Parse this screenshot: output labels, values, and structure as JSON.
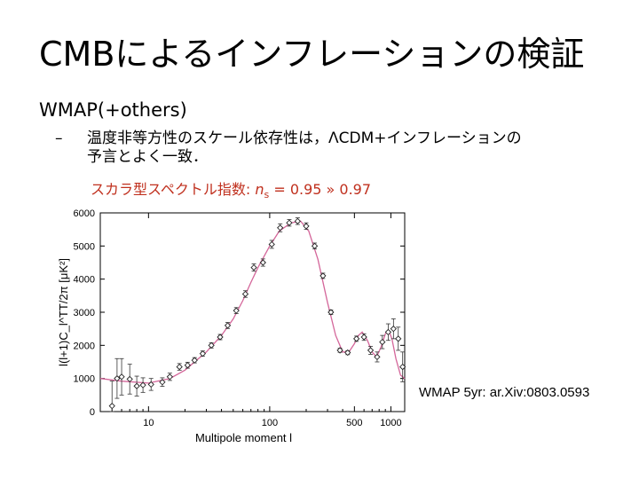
{
  "slide": {
    "title": "CMBによるインフレーションの検証",
    "bullet1": "WMAP(+others)",
    "bullet2_dash": "–",
    "bullet2_line1": "温度非等方性のスケール依存性は，ΛCDM+インフレーションの",
    "bullet2_line2": "予言とよく一致．",
    "red_prefix": "スカラ型スペクトル指数: ",
    "red_ns": "n",
    "red_sub": "s",
    "red_suffix": " = 0.95 » 0.97",
    "red_color": "#c0301e",
    "credit": "WMAP 5yr: ar.Xiv:0803.0593"
  },
  "chart_data": {
    "type": "scatter",
    "xlabel": "Multipole moment  l",
    "ylabel": "l(l+1)C_l^TT/2π [μK²]",
    "x_scale": "log",
    "xlim": [
      4,
      1300
    ],
    "ylim": [
      0,
      6000
    ],
    "x_ticks": [
      10,
      100,
      500,
      1000
    ],
    "y_ticks": [
      0,
      1000,
      2000,
      3000,
      4000,
      5000,
      6000
    ],
    "grid": false,
    "curve_color": "#d4669a",
    "points": [
      {
        "x": 5,
        "y": 170,
        "err": 750
      },
      {
        "x": 5.5,
        "y": 1000,
        "err": 600
      },
      {
        "x": 6,
        "y": 1050,
        "err": 550
      },
      {
        "x": 7,
        "y": 980,
        "err": 450
      },
      {
        "x": 8,
        "y": 770,
        "err": 300
      },
      {
        "x": 9,
        "y": 800,
        "err": 220
      },
      {
        "x": 10.5,
        "y": 820,
        "err": 180
      },
      {
        "x": 13,
        "y": 890,
        "err": 130
      },
      {
        "x": 15,
        "y": 1050,
        "err": 110
      },
      {
        "x": 18,
        "y": 1350,
        "err": 100
      },
      {
        "x": 21,
        "y": 1400,
        "err": 90
      },
      {
        "x": 24,
        "y": 1550,
        "err": 80
      },
      {
        "x": 28,
        "y": 1750,
        "err": 80
      },
      {
        "x": 33,
        "y": 2000,
        "err": 80
      },
      {
        "x": 39,
        "y": 2250,
        "err": 80
      },
      {
        "x": 45,
        "y": 2600,
        "err": 90
      },
      {
        "x": 53,
        "y": 3050,
        "err": 90
      },
      {
        "x": 63,
        "y": 3550,
        "err": 100
      },
      {
        "x": 74,
        "y": 4350,
        "err": 110
      },
      {
        "x": 88,
        "y": 4500,
        "err": 110
      },
      {
        "x": 104,
        "y": 5050,
        "err": 120
      },
      {
        "x": 122,
        "y": 5550,
        "err": 120
      },
      {
        "x": 145,
        "y": 5700,
        "err": 100
      },
      {
        "x": 170,
        "y": 5750,
        "err": 100
      },
      {
        "x": 200,
        "y": 5600,
        "err": 100
      },
      {
        "x": 235,
        "y": 5000,
        "err": 90
      },
      {
        "x": 275,
        "y": 4100,
        "err": 80
      },
      {
        "x": 320,
        "y": 3000,
        "err": 70
      },
      {
        "x": 380,
        "y": 1850,
        "err": 60
      },
      {
        "x": 440,
        "y": 1780,
        "err": 60
      },
      {
        "x": 520,
        "y": 2200,
        "err": 80
      },
      {
        "x": 600,
        "y": 2250,
        "err": 100
      },
      {
        "x": 680,
        "y": 1850,
        "err": 120
      },
      {
        "x": 770,
        "y": 1650,
        "err": 150
      },
      {
        "x": 850,
        "y": 2100,
        "err": 200
      },
      {
        "x": 950,
        "y": 2400,
        "err": 250
      },
      {
        "x": 1050,
        "y": 2500,
        "err": 300
      },
      {
        "x": 1150,
        "y": 2200,
        "err": 350
      },
      {
        "x": 1250,
        "y": 1350,
        "err": 450
      }
    ],
    "curve": [
      {
        "x": 4,
        "y": 1000
      },
      {
        "x": 6,
        "y": 920
      },
      {
        "x": 10,
        "y": 860
      },
      {
        "x": 15,
        "y": 1000
      },
      {
        "x": 20,
        "y": 1250
      },
      {
        "x": 30,
        "y": 1800
      },
      {
        "x": 40,
        "y": 2300
      },
      {
        "x": 50,
        "y": 2800
      },
      {
        "x": 60,
        "y": 3350
      },
      {
        "x": 70,
        "y": 3900
      },
      {
        "x": 80,
        "y": 4350
      },
      {
        "x": 100,
        "y": 5000
      },
      {
        "x": 120,
        "y": 5450
      },
      {
        "x": 150,
        "y": 5700
      },
      {
        "x": 180,
        "y": 5750
      },
      {
        "x": 210,
        "y": 5450
      },
      {
        "x": 250,
        "y": 4600
      },
      {
        "x": 300,
        "y": 3300
      },
      {
        "x": 350,
        "y": 2300
      },
      {
        "x": 400,
        "y": 1800
      },
      {
        "x": 450,
        "y": 1800
      },
      {
        "x": 500,
        "y": 2050
      },
      {
        "x": 540,
        "y": 2300
      },
      {
        "x": 580,
        "y": 2400
      },
      {
        "x": 640,
        "y": 2150
      },
      {
        "x": 700,
        "y": 1800
      },
      {
        "x": 760,
        "y": 1650
      },
      {
        "x": 830,
        "y": 1950
      },
      {
        "x": 900,
        "y": 2350
      },
      {
        "x": 960,
        "y": 2450
      },
      {
        "x": 1020,
        "y": 2200
      },
      {
        "x": 1100,
        "y": 1600
      },
      {
        "x": 1200,
        "y": 1100
      },
      {
        "x": 1300,
        "y": 1000
      }
    ]
  }
}
